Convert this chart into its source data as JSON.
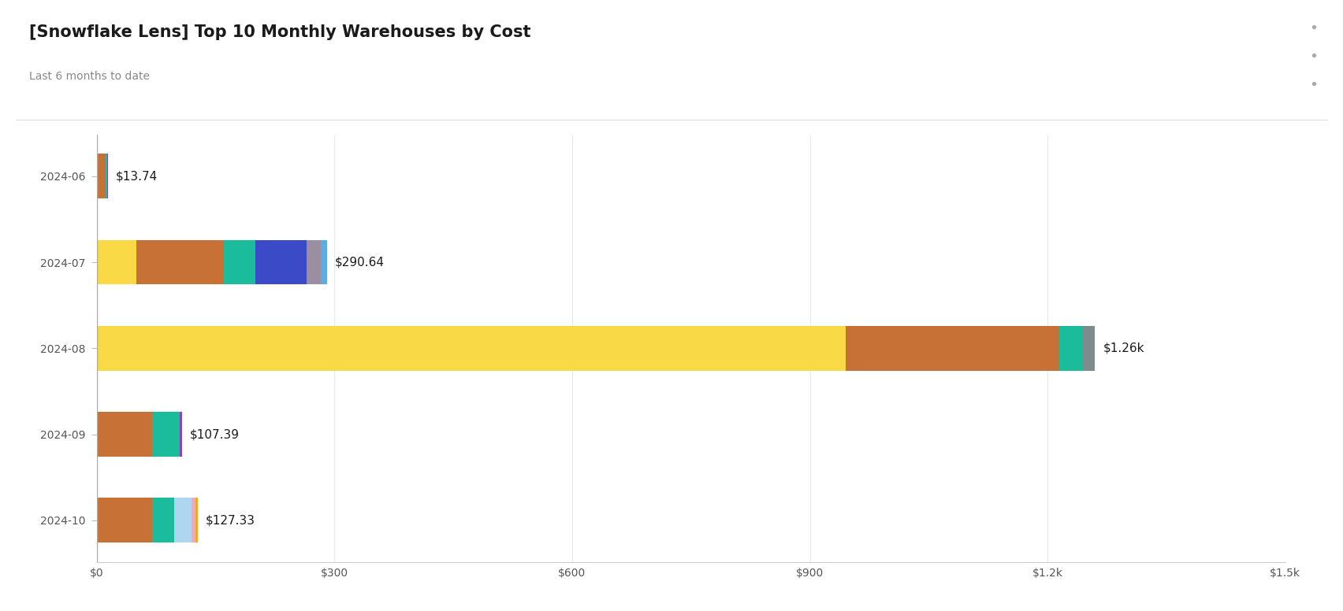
{
  "title": "[Snowflake Lens] Top 10 Monthly Warehouses by Cost",
  "subtitle": "Last 6 months to date",
  "background_color": "#ffffff",
  "plot_bg_color": "#ffffff",
  "months": [
    "2024-06",
    "2024-07",
    "2024-08",
    "2024-09",
    "2024-10"
  ],
  "totals": [
    "$13.74",
    "$290.64",
    "$1.26k",
    "$107.39",
    "$127.33"
  ],
  "xlim": [
    0,
    1500
  ],
  "xtick_values": [
    0,
    300,
    600,
    900,
    1200,
    1500
  ],
  "xtick_labels": [
    "$0",
    "$300",
    "$600",
    "$900",
    "$1.2k",
    "$1.5k"
  ],
  "bars": [
    {
      "month": "2024-06",
      "segments": [
        {
          "value": 11.5,
          "color": "#c87137"
        },
        {
          "value": 1.5,
          "color": "#1abc9c"
        },
        {
          "value": 0.74,
          "color": "#8e44ad"
        }
      ]
    },
    {
      "month": "2024-07",
      "segments": [
        {
          "value": 50.0,
          "color": "#f9d945"
        },
        {
          "value": 110.0,
          "color": "#c87137"
        },
        {
          "value": 40.0,
          "color": "#1abc9c"
        },
        {
          "value": 65.0,
          "color": "#3b4bc8"
        },
        {
          "value": 18.0,
          "color": "#9b8ea0"
        },
        {
          "value": 7.64,
          "color": "#5dade2"
        }
      ]
    },
    {
      "month": "2024-08",
      "segments": [
        {
          "value": 945.0,
          "color": "#f9d945"
        },
        {
          "value": 270.0,
          "color": "#c87137"
        },
        {
          "value": 30.0,
          "color": "#1abc9c"
        },
        {
          "value": 15.0,
          "color": "#7f8c8d"
        }
      ]
    },
    {
      "month": "2024-09",
      "segments": [
        {
          "value": 70.0,
          "color": "#c87137"
        },
        {
          "value": 35.0,
          "color": "#1abc9c"
        },
        {
          "value": 2.39,
          "color": "#8e44ad"
        }
      ]
    },
    {
      "month": "2024-10",
      "segments": [
        {
          "value": 70.0,
          "color": "#c87137"
        },
        {
          "value": 28.0,
          "color": "#1abc9c"
        },
        {
          "value": 22.0,
          "color": "#aed6f1"
        },
        {
          "value": 5.0,
          "color": "#f4a7b9"
        },
        {
          "value": 2.33,
          "color": "#f9a825"
        }
      ]
    }
  ],
  "title_fontsize": 15,
  "subtitle_fontsize": 10,
  "tick_fontsize": 10,
  "label_fontsize": 11,
  "bar_height": 0.52,
  "grid_color": "#e8e8e8",
  "tick_color": "#555555",
  "title_color": "#1a1a1a",
  "subtitle_color": "#888888",
  "dots_color": "#aaaaaa"
}
